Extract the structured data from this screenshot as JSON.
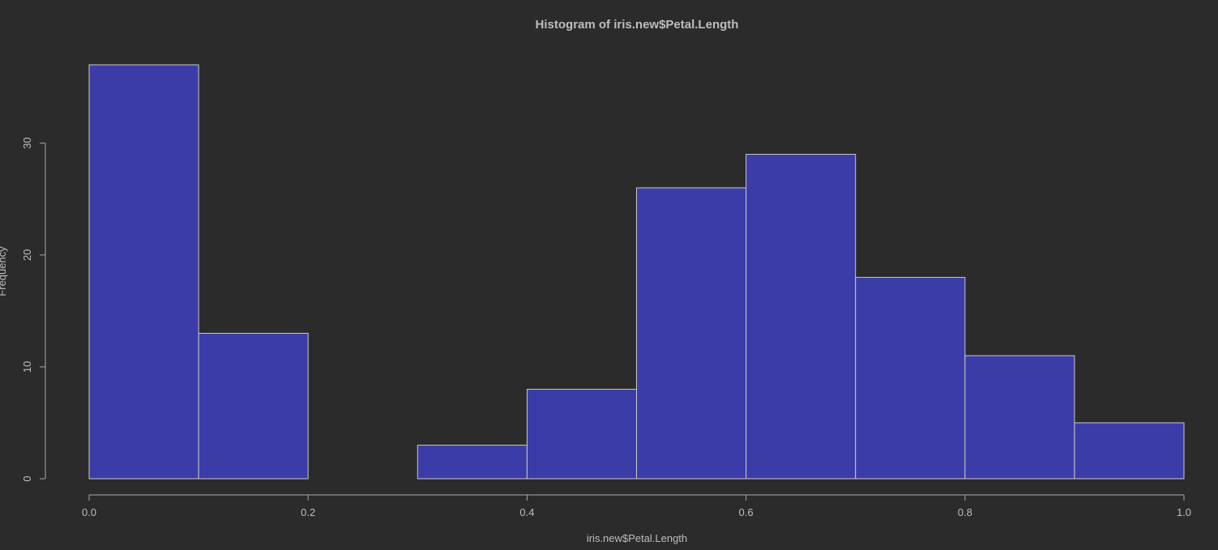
{
  "colors": {
    "background": "#2b2b2b",
    "bar_fill": "#3c3ca8",
    "bar_stroke": "#c8c8c8",
    "text": "#bdbdbd",
    "axis": "#a8a8a8"
  },
  "chart_data": {
    "type": "bar",
    "title": "Histogram of iris.new$Petal.Length",
    "xlabel": "iris.new$Petal.Length",
    "ylabel": "Frequency",
    "bins": [
      {
        "start": 0.0,
        "end": 0.1,
        "count": 37
      },
      {
        "start": 0.1,
        "end": 0.2,
        "count": 13
      },
      {
        "start": 0.2,
        "end": 0.3,
        "count": 0
      },
      {
        "start": 0.3,
        "end": 0.4,
        "count": 3
      },
      {
        "start": 0.4,
        "end": 0.5,
        "count": 8
      },
      {
        "start": 0.5,
        "end": 0.6,
        "count": 26
      },
      {
        "start": 0.6,
        "end": 0.7,
        "count": 29
      },
      {
        "start": 0.7,
        "end": 0.8,
        "count": 18
      },
      {
        "start": 0.8,
        "end": 0.9,
        "count": 11
      },
      {
        "start": 0.9,
        "end": 1.0,
        "count": 5
      }
    ],
    "xlim": [
      0,
      1
    ],
    "ylim": [
      0,
      37
    ],
    "x_ticks": [
      {
        "value": 0.0,
        "label": "0.0"
      },
      {
        "value": 0.2,
        "label": "0.2"
      },
      {
        "value": 0.4,
        "label": "0.4"
      },
      {
        "value": 0.6,
        "label": "0.6"
      },
      {
        "value": 0.8,
        "label": "0.8"
      },
      {
        "value": 1.0,
        "label": "1.0"
      }
    ],
    "y_ticks": [
      {
        "value": 0,
        "label": "0"
      },
      {
        "value": 10,
        "label": "10"
      },
      {
        "value": 20,
        "label": "20"
      },
      {
        "value": 30,
        "label": "30"
      }
    ],
    "grid": false,
    "legend": "none"
  }
}
